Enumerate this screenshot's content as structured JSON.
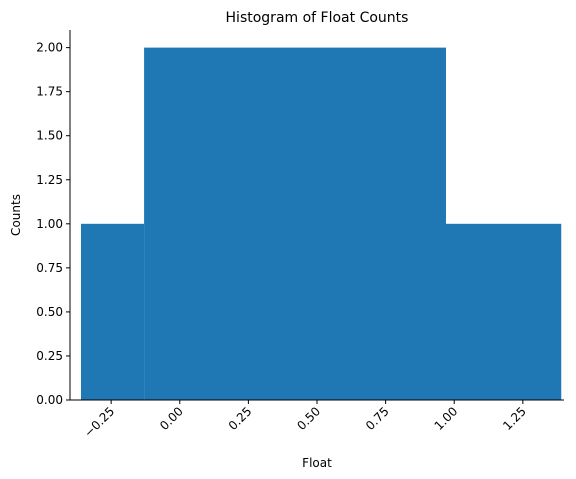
{
  "chart_data": {
    "type": "bar",
    "title": "Histogram of Float Counts",
    "xlabel": "Float",
    "ylabel": "Counts",
    "xlim": [
      -0.4,
      1.4
    ],
    "ylim": [
      0,
      2.1
    ],
    "bins": [
      {
        "x0": -0.36,
        "x1": -0.13,
        "value": 1
      },
      {
        "x0": -0.13,
        "x1": 0.97,
        "value": 2
      },
      {
        "x0": 0.97,
        "x1": 1.39,
        "value": 1
      }
    ],
    "x_ticks": [
      {
        "value": -0.25,
        "label": "−0.25"
      },
      {
        "value": 0.0,
        "label": "0.00"
      },
      {
        "value": 0.25,
        "label": "0.25"
      },
      {
        "value": 0.5,
        "label": "0.50"
      },
      {
        "value": 0.75,
        "label": "0.75"
      },
      {
        "value": 1.0,
        "label": "1.00"
      },
      {
        "value": 1.25,
        "label": "1.25"
      }
    ],
    "y_ticks": [
      {
        "value": 0.0,
        "label": "0.00"
      },
      {
        "value": 0.25,
        "label": "0.25"
      },
      {
        "value": 0.5,
        "label": "0.50"
      },
      {
        "value": 0.75,
        "label": "0.75"
      },
      {
        "value": 1.0,
        "label": "1.00"
      },
      {
        "value": 1.25,
        "label": "1.25"
      },
      {
        "value": 1.5,
        "label": "1.50"
      },
      {
        "value": 1.75,
        "label": "1.75"
      },
      {
        "value": 2.0,
        "label": "2.00"
      }
    ],
    "bar_color": "#1f77b4",
    "grid": false
  }
}
